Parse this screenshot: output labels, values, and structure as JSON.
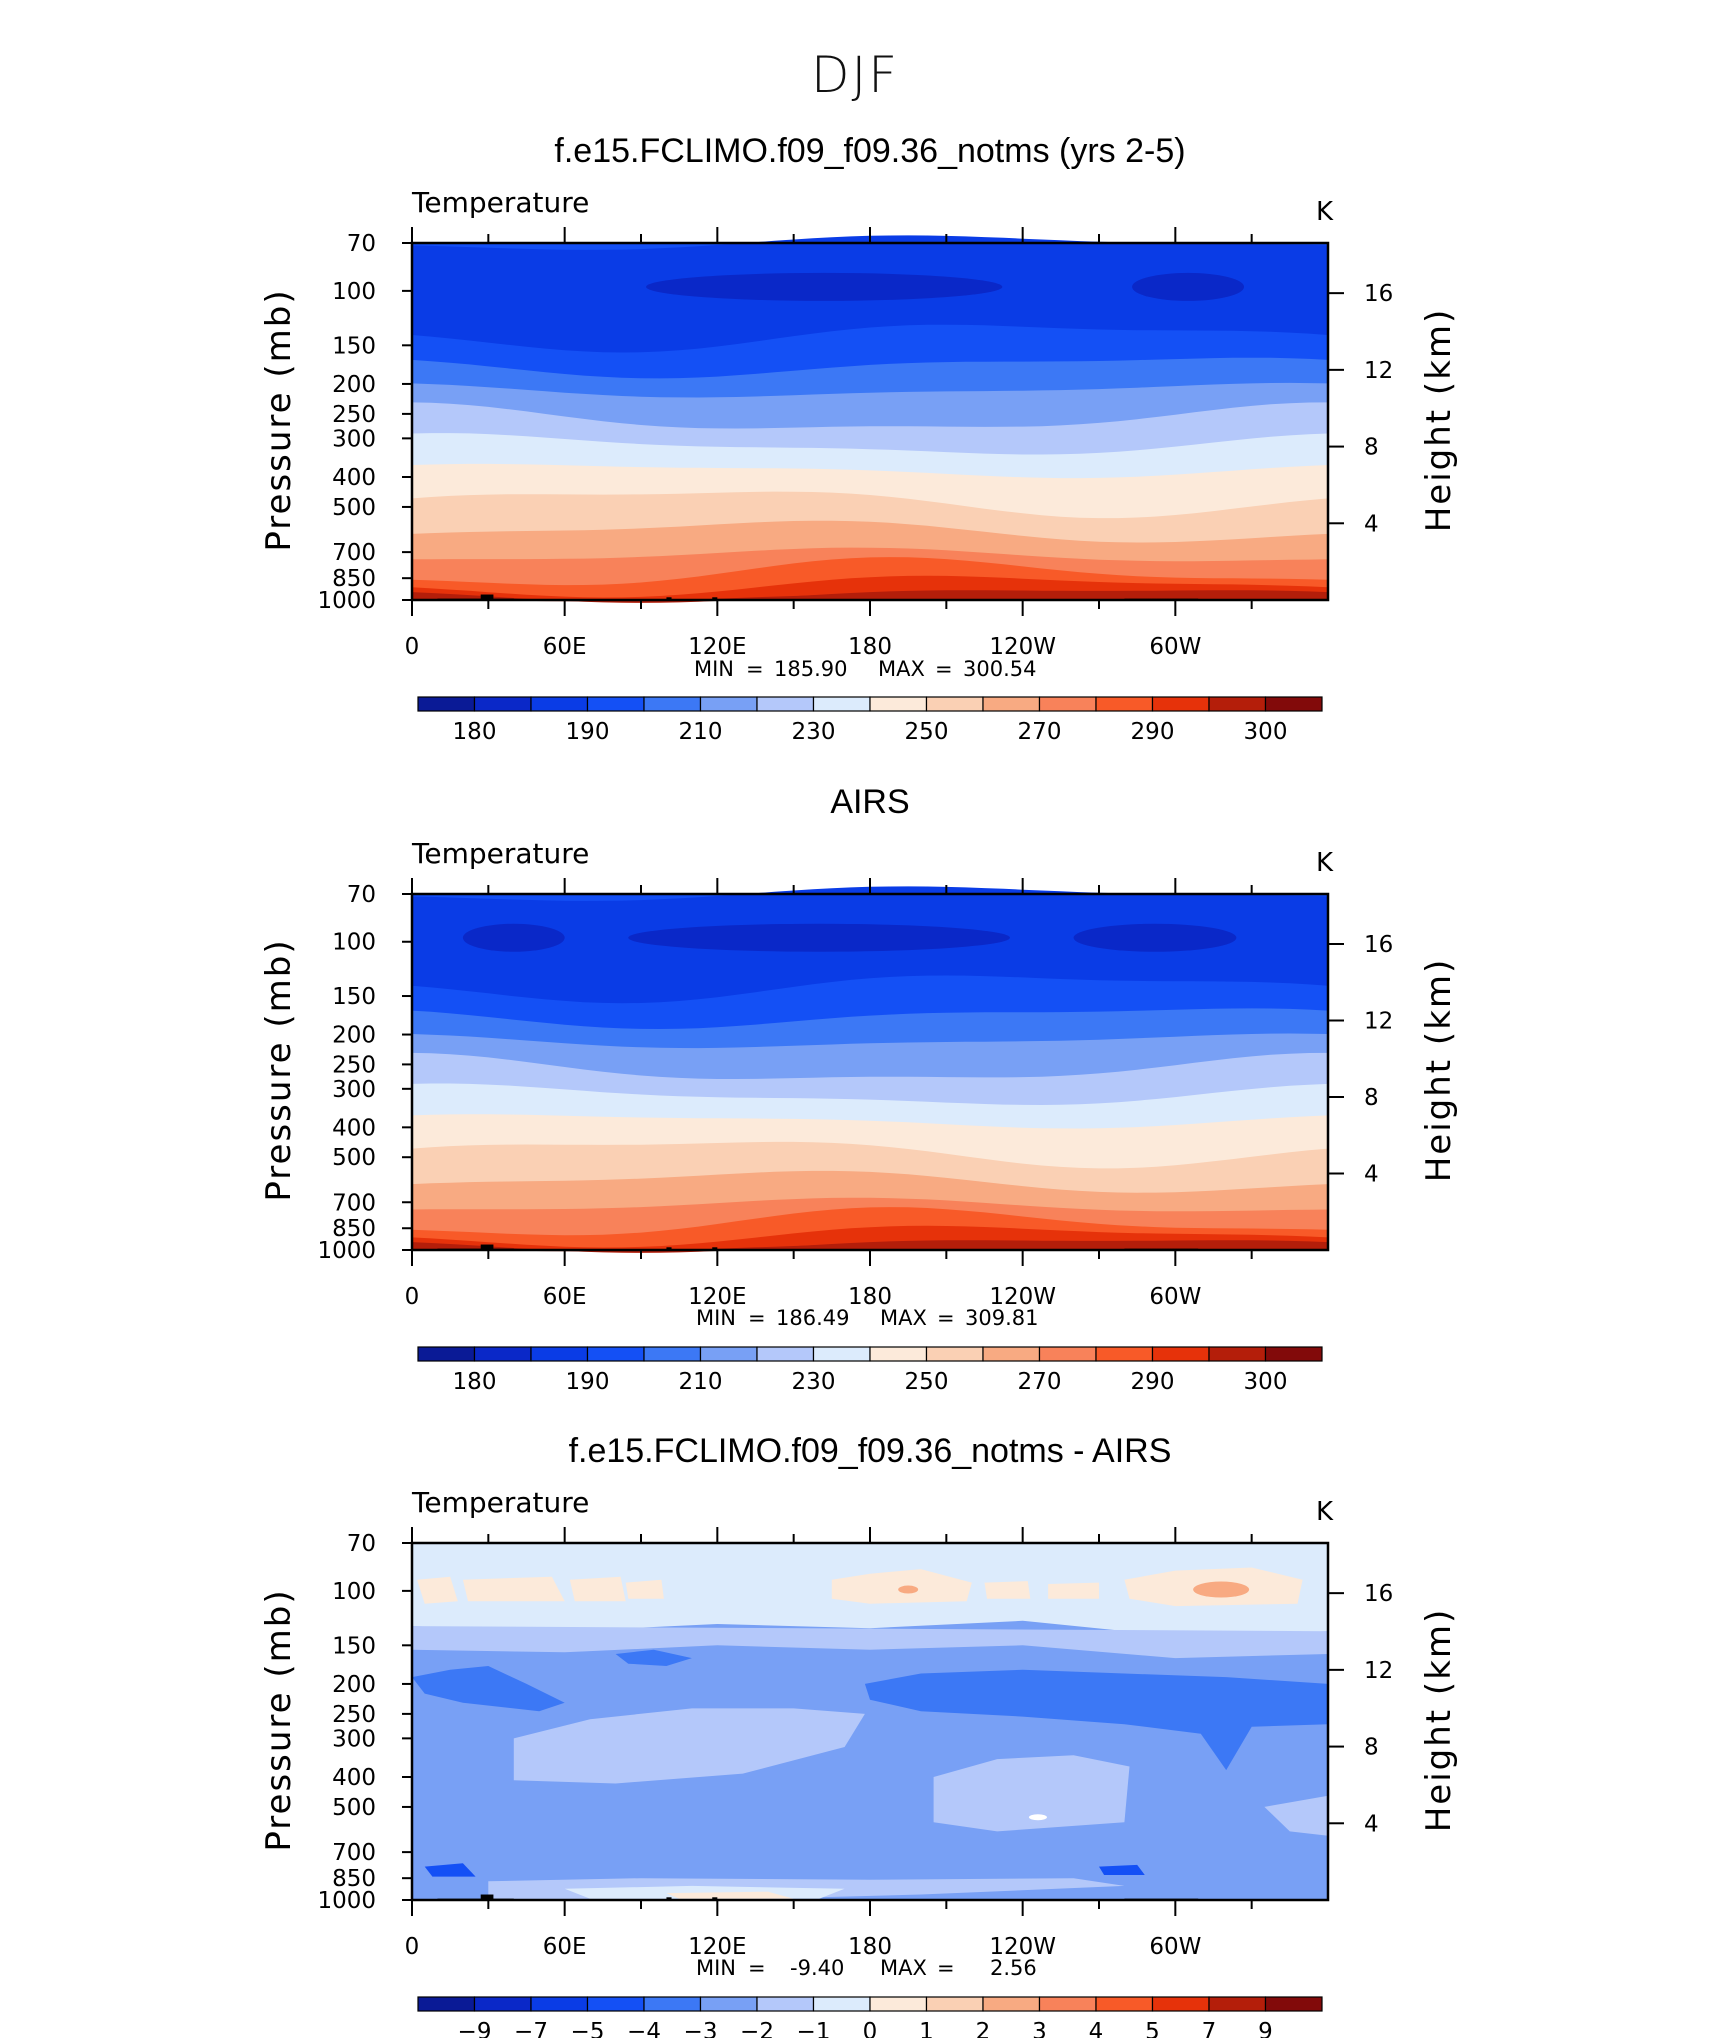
{
  "page_title": "DJF",
  "colors": {
    "temperature_scale": [
      "#0a1a96",
      "#0a28c8",
      "#0a3ce6",
      "#1450f5",
      "#3c78f5",
      "#78a0f5",
      "#b4c8fa",
      "#dcebfc",
      "#fceada",
      "#fad0b4",
      "#f8aa82",
      "#f8825a",
      "#f85a28",
      "#e6320a",
      "#b41e0a",
      "#820a0a"
    ],
    "difference_scale": [
      "#0a1a96",
      "#0a28c8",
      "#0a3ce6",
      "#1450f5",
      "#3c78f5",
      "#78a0f5",
      "#b4c8fa",
      "#dcebfc",
      "#fceada",
      "#fad0b4",
      "#f8aa82",
      "#f8825a",
      "#f85a28",
      "#e6320a",
      "#b41e0a",
      "#820a0a"
    ],
    "terrain": "#000000"
  },
  "chart_data": [
    {
      "type": "heatmap",
      "title": "f.e15.FCLIMO.f09_f09.36_notms (yrs 2-5)",
      "field_label": "Temperature",
      "units": "K",
      "ylabel_left": "Pressure (mb)",
      "ylabel_right": "Height (km)",
      "x_ticks": [
        "0",
        "60E",
        "120E",
        "180",
        "120W",
        "60W"
      ],
      "x_range_deg": [
        0,
        360
      ],
      "y_ticks_pressure": [
        70,
        100,
        150,
        200,
        250,
        300,
        400,
        500,
        700,
        850,
        1000
      ],
      "y_ticks_height_km": [
        16,
        12,
        8,
        4
      ],
      "stats": {
        "min_label": "MIN",
        "min": "185.90",
        "max_label": "MAX",
        "max": "300.54"
      },
      "colorbar_labels": [
        "180",
        "190",
        "210",
        "230",
        "250",
        "270",
        "290",
        "300"
      ],
      "band_pressures_mb": [
        1000,
        960,
        900,
        820,
        720,
        600,
        480,
        380,
        315,
        260,
        210,
        175,
        140,
        70
      ],
      "band_levels": [
        14,
        13,
        12,
        11,
        10,
        9,
        8,
        7,
        6,
        5,
        4,
        3,
        2
      ],
      "cold_cells": [
        {
          "lon_center": 162,
          "lon_halfwidth": 70,
          "pressure_mb": 100,
          "level": 1
        },
        {
          "lon_center": 305,
          "lon_halfwidth": 22,
          "pressure_mb": 100,
          "level": 1
        }
      ]
    },
    {
      "type": "heatmap",
      "title": "AIRS",
      "field_label": "Temperature",
      "units": "K",
      "ylabel_left": "Pressure (mb)",
      "ylabel_right": "Height (km)",
      "x_ticks": [
        "0",
        "60E",
        "120E",
        "180",
        "120W",
        "60W"
      ],
      "x_range_deg": [
        0,
        360
      ],
      "y_ticks_pressure": [
        70,
        100,
        150,
        200,
        250,
        300,
        400,
        500,
        700,
        850,
        1000
      ],
      "y_ticks_height_km": [
        16,
        12,
        8,
        4
      ],
      "stats": {
        "min_label": "MIN",
        "min": "186.49",
        "max_label": "MAX",
        "max": "309.81"
      },
      "colorbar_labels": [
        "180",
        "190",
        "210",
        "230",
        "250",
        "270",
        "290",
        "300"
      ],
      "band_pressures_mb": [
        1000,
        960,
        900,
        820,
        720,
        600,
        480,
        380,
        315,
        260,
        210,
        175,
        140,
        70
      ],
      "band_levels": [
        14,
        13,
        12,
        11,
        10,
        9,
        8,
        7,
        6,
        5,
        4,
        3,
        2
      ],
      "cold_cells": [
        {
          "lon_center": 160,
          "lon_halfwidth": 75,
          "pressure_mb": 100,
          "level": 1
        },
        {
          "lon_center": 292,
          "lon_halfwidth": 32,
          "pressure_mb": 100,
          "level": 1
        },
        {
          "lon_center": 40,
          "lon_halfwidth": 20,
          "pressure_mb": 100,
          "level": 1
        }
      ]
    },
    {
      "type": "heatmap",
      "title": "f.e15.FCLIMO.f09_f09.36_notms - AIRS",
      "field_label": "Temperature",
      "units": "K",
      "ylabel_left": "Pressure (mb)",
      "ylabel_right": "Height (km)",
      "x_ticks": [
        "0",
        "60E",
        "120E",
        "180",
        "120W",
        "60W"
      ],
      "x_range_deg": [
        0,
        360
      ],
      "y_ticks_pressure": [
        70,
        100,
        150,
        200,
        250,
        300,
        400,
        500,
        700,
        850,
        1000
      ],
      "y_ticks_height_km": [
        16,
        12,
        8,
        4
      ],
      "stats": {
        "min_label": "MIN",
        "min": "-9.40",
        "max_label": "MAX",
        "max": "2.56"
      },
      "colorbar_labels": [
        "−9",
        "−7",
        "−5",
        "−4",
        "−3",
        "−2",
        "−1",
        "0",
        "1",
        "2",
        "3",
        "4",
        "5",
        "7",
        "9"
      ],
      "background_level": 5
    }
  ]
}
